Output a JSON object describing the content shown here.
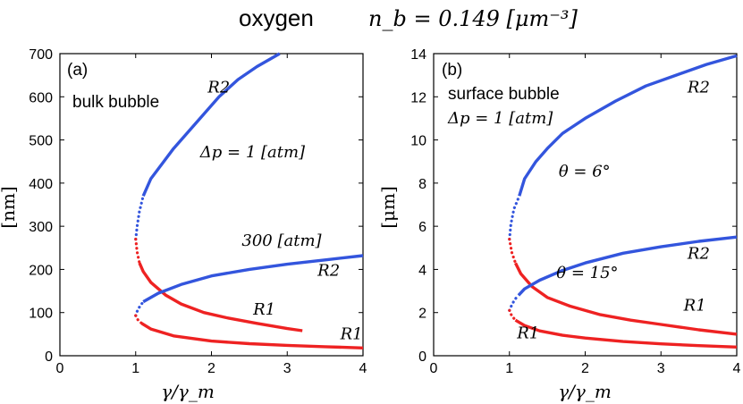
{
  "title": {
    "gas": "oxygen",
    "density_label": "n_b = 0.149 [μm⁻³]"
  },
  "colors": {
    "stable": "#3355dd",
    "unstable": "#ee2222"
  },
  "chart_data": [
    {
      "type": "line",
      "panel_label": "(a)",
      "annotation_title": "bulk bubble",
      "xlabel": "γ/γ_m",
      "ylabel": "[nm]",
      "xlim": [
        0,
        4
      ],
      "ylim": [
        0,
        700
      ],
      "xticks": [
        "0",
        "1",
        "2",
        "3",
        "4"
      ],
      "yticks": [
        "0",
        "100",
        "200",
        "300",
        "400",
        "500",
        "600",
        "700"
      ],
      "curve_labels": [
        {
          "text": "R2",
          "x": 1.95,
          "y": 610
        },
        {
          "text": "Δp = 1 [atm]",
          "x": 1.85,
          "y": 460
        },
        {
          "text": "300 [atm]",
          "x": 2.4,
          "y": 255
        },
        {
          "text": "R2",
          "x": 3.4,
          "y": 185
        },
        {
          "text": "R1",
          "x": 2.55,
          "y": 95
        },
        {
          "text": "R1",
          "x": 3.7,
          "y": 38
        }
      ],
      "series": [
        {
          "name": "R2 (Δp = 1 atm)",
          "color": "blue",
          "style": "solid",
          "x": [
            1.1,
            1.2,
            1.35,
            1.5,
            1.7,
            1.9,
            2.1,
            2.35,
            2.6,
            2.9
          ],
          "y": [
            370,
            410,
            445,
            480,
            520,
            560,
            600,
            640,
            670,
            700
          ]
        },
        {
          "name": "R2 (Δp = 1 atm) near fold",
          "color": "blue",
          "style": "dotted",
          "x": [
            1.0,
            1.02,
            1.05,
            1.1
          ],
          "y": [
            270,
            300,
            335,
            370
          ]
        },
        {
          "name": "R1 (Δp = 1 atm) near fold",
          "color": "red",
          "style": "dotted",
          "x": [
            1.0,
            1.02,
            1.05
          ],
          "y": [
            270,
            240,
            215
          ]
        },
        {
          "name": "R1 (Δp = 1 atm)",
          "color": "red",
          "style": "solid",
          "x": [
            1.05,
            1.1,
            1.2,
            1.4,
            1.6,
            1.9,
            2.2,
            2.6,
            3.0,
            3.2
          ],
          "y": [
            215,
            195,
            170,
            140,
            120,
            100,
            88,
            75,
            63,
            58
          ]
        },
        {
          "name": "R2 (Δp = 300 atm)",
          "color": "blue",
          "style": "solid",
          "x": [
            1.1,
            1.3,
            1.6,
            2.0,
            2.5,
            3.0,
            3.5,
            4.0
          ],
          "y": [
            125,
            145,
            165,
            185,
            200,
            212,
            222,
            232
          ]
        },
        {
          "name": "R2 (Δp = 300 atm) near fold",
          "color": "blue",
          "style": "dotted",
          "x": [
            1.0,
            1.02,
            1.05,
            1.1
          ],
          "y": [
            93,
            103,
            113,
            125
          ]
        },
        {
          "name": "R1 (Δp = 300 atm) near fold",
          "color": "red",
          "style": "dotted",
          "x": [
            1.0,
            1.03,
            1.08
          ],
          "y": [
            93,
            83,
            75
          ]
        },
        {
          "name": "R1 (Δp = 300 atm)",
          "color": "red",
          "style": "solid",
          "x": [
            1.08,
            1.2,
            1.5,
            2.0,
            2.5,
            3.0,
            3.5,
            4.0
          ],
          "y": [
            75,
            62,
            46,
            34,
            28,
            24,
            21,
            18
          ]
        }
      ]
    },
    {
      "type": "line",
      "panel_label": "(b)",
      "annotation_title": "surface bubble",
      "annotation_sub": "Δp = 1 [atm]",
      "xlabel": "γ/γ_m",
      "ylabel": "[μm]",
      "xlim": [
        0,
        4
      ],
      "ylim": [
        0,
        14
      ],
      "xticks": [
        "0",
        "1",
        "2",
        "3",
        "4"
      ],
      "yticks": [
        "0",
        "2",
        "4",
        "6",
        "8",
        "10",
        "12",
        "14"
      ],
      "curve_labels": [
        {
          "text": "R2",
          "x": 3.35,
          "y": 12.2
        },
        {
          "text": "θ = 6°",
          "x": 1.65,
          "y": 8.3
        },
        {
          "text": "R2",
          "x": 3.35,
          "y": 4.5
        },
        {
          "text": "θ = 15°",
          "x": 1.62,
          "y": 3.6
        },
        {
          "text": "R1",
          "x": 3.3,
          "y": 2.1
        },
        {
          "text": "R1",
          "x": 1.1,
          "y": 0.8
        }
      ],
      "series": [
        {
          "name": "R2 (θ = 6°)",
          "color": "blue",
          "style": "solid",
          "x": [
            1.13,
            1.2,
            1.35,
            1.5,
            1.7,
            2.0,
            2.4,
            2.8,
            3.2,
            3.6,
            4.0
          ],
          "y": [
            7.4,
            8.2,
            9.0,
            9.6,
            10.3,
            11.0,
            11.8,
            12.5,
            13.0,
            13.5,
            13.9
          ]
        },
        {
          "name": "R2 (θ = 6°) near fold",
          "color": "blue",
          "style": "dotted",
          "x": [
            1.0,
            1.02,
            1.06,
            1.13
          ],
          "y": [
            5.4,
            6.1,
            6.8,
            7.4
          ]
        },
        {
          "name": "R1 (θ = 6°) near fold",
          "color": "red",
          "style": "dotted",
          "x": [
            1.0,
            1.03,
            1.08
          ],
          "y": [
            5.4,
            4.8,
            4.3
          ]
        },
        {
          "name": "R1 (θ = 6°)",
          "color": "red",
          "style": "solid",
          "x": [
            1.08,
            1.15,
            1.3,
            1.5,
            1.8,
            2.2,
            2.6,
            3.0,
            3.5,
            4.0
          ],
          "y": [
            4.3,
            3.8,
            3.2,
            2.7,
            2.3,
            1.9,
            1.65,
            1.45,
            1.2,
            1.0
          ]
        },
        {
          "name": "R2 (θ = 15°)",
          "color": "blue",
          "style": "solid",
          "x": [
            1.12,
            1.2,
            1.4,
            1.7,
            2.0,
            2.5,
            3.0,
            3.5,
            4.0
          ],
          "y": [
            2.8,
            3.1,
            3.5,
            3.95,
            4.3,
            4.75,
            5.05,
            5.3,
            5.5
          ]
        },
        {
          "name": "R2 (θ = 15°) near fold",
          "color": "blue",
          "style": "dotted",
          "x": [
            1.0,
            1.03,
            1.07,
            1.12
          ],
          "y": [
            2.1,
            2.35,
            2.6,
            2.8
          ]
        },
        {
          "name": "R1 (θ = 15°) near fold",
          "color": "red",
          "style": "dotted",
          "x": [
            1.0,
            1.03,
            1.08
          ],
          "y": [
            2.1,
            1.85,
            1.65
          ]
        },
        {
          "name": "R1 (θ = 15°)",
          "color": "red",
          "style": "solid",
          "x": [
            1.08,
            1.2,
            1.4,
            1.7,
            2.0,
            2.5,
            3.0,
            3.5,
            4.0
          ],
          "y": [
            1.65,
            1.4,
            1.15,
            0.95,
            0.82,
            0.66,
            0.55,
            0.47,
            0.4
          ]
        }
      ]
    }
  ]
}
